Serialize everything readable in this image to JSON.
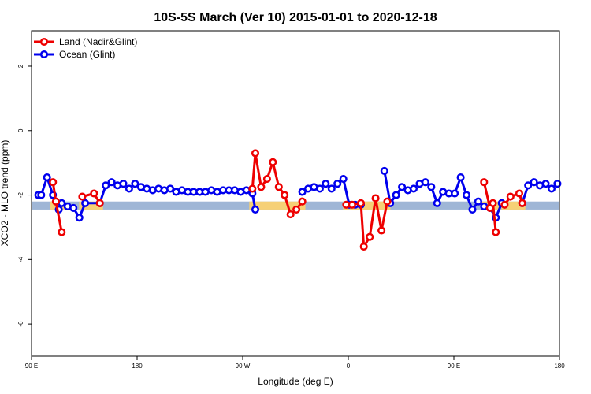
{
  "chart_data": {
    "type": "line",
    "title": "10S-5S March (Ver 10)   2015-01-01 to 2020-12-18",
    "xlabel": "Longitude (deg E)",
    "ylabel": "XCO2 - MLO trend (ppm)",
    "xlim": [
      90,
      450
    ],
    "ylim": [
      -7,
      3.1
    ],
    "x_ticks": [
      {
        "value": 90,
        "label": "90 E"
      },
      {
        "value": 162,
        "label": "180"
      },
      {
        "value": 234,
        "label": "90 W"
      },
      {
        "value": 306,
        "label": "0"
      },
      {
        "value": 378,
        "label": "90 E"
      },
      {
        "value": 450,
        "label": "180"
      }
    ],
    "y_ticks": [
      -6,
      -4,
      -2,
      0,
      2
    ],
    "legend_position": "top-left",
    "colors": {
      "land": "#ee0000",
      "ocean": "#0000ee",
      "band": "#9fb6d6",
      "band_highlight": "#ffd36b"
    },
    "reference_band": {
      "y_min": -2.45,
      "y_max": -2.2
    },
    "series": [
      {
        "name": "Land (Nadir&Glint)",
        "segments": [
          [
            [
              104.6,
              -1.6
            ],
            [
              106.6,
              -2.2
            ],
            [
              110.6,
              -3.15
            ]
          ],
          [
            [
              124.6,
              -2.05
            ],
            [
              132.6,
              -1.95
            ],
            [
              136.6,
              -2.25
            ]
          ],
          [
            [
              240.6,
              -1.8
            ],
            [
              242.6,
              -0.7
            ],
            [
              246.6,
              -1.75
            ],
            [
              250.6,
              -1.5
            ],
            [
              254.6,
              -0.98
            ],
            [
              258.6,
              -1.75
            ],
            [
              262.6,
              -2.0
            ],
            [
              266.6,
              -2.6
            ],
            [
              270.6,
              -2.45
            ],
            [
              274.6,
              -2.2
            ]
          ],
          [
            [
              304.6,
              -2.3
            ],
            [
              308.6,
              -2.3
            ],
            [
              314.6,
              -2.25
            ],
            [
              316.6,
              -3.6
            ],
            [
              320.6,
              -3.3
            ],
            [
              324.6,
              -2.1
            ],
            [
              328.6,
              -3.1
            ],
            [
              332.6,
              -2.2
            ]
          ],
          [
            [
              398.6,
              -1.6
            ],
            [
              402.6,
              -2.4
            ],
            [
              404.6,
              -2.25
            ],
            [
              406.6,
              -3.15
            ]
          ],
          [
            [
              412.6,
              -2.3
            ],
            [
              416.6,
              -2.05
            ],
            [
              422.6,
              -1.95
            ],
            [
              424.6,
              -2.25
            ]
          ]
        ]
      },
      {
        "name": "Ocean (Glint)",
        "segments": [
          [
            [
              94.6,
              -2.0
            ],
            [
              96.6,
              -2.0
            ],
            [
              100.6,
              -1.45
            ],
            [
              104.6,
              -2.0
            ],
            [
              108.6,
              -2.45
            ],
            [
              110.6,
              -2.25
            ],
            [
              114.6,
              -2.35
            ],
            [
              118.6,
              -2.4
            ],
            [
              122.6,
              -2.7
            ],
            [
              126.6,
              -2.25
            ],
            [
              136.6,
              -2.25
            ],
            [
              140.6,
              -1.7
            ],
            [
              144.6,
              -1.6
            ],
            [
              148.6,
              -1.7
            ],
            [
              152.6,
              -1.65
            ],
            [
              156.6,
              -1.8
            ],
            [
              160.6,
              -1.65
            ],
            [
              164.6,
              -1.75
            ],
            [
              168.6,
              -1.8
            ],
            [
              172.6,
              -1.85
            ],
            [
              176.6,
              -1.8
            ],
            [
              180.6,
              -1.85
            ],
            [
              184.6,
              -1.8
            ],
            [
              188.6,
              -1.9
            ],
            [
              192.6,
              -1.85
            ],
            [
              196.6,
              -1.9
            ],
            [
              200.6,
              -1.9
            ],
            [
              204.6,
              -1.9
            ],
            [
              208.6,
              -1.9
            ],
            [
              212.6,
              -1.85
            ],
            [
              216.6,
              -1.9
            ],
            [
              220.6,
              -1.85
            ],
            [
              224.6,
              -1.85
            ],
            [
              228.6,
              -1.85
            ],
            [
              232.6,
              -1.9
            ],
            [
              236.6,
              -1.85
            ],
            [
              240.6,
              -1.95
            ],
            [
              242.6,
              -2.45
            ]
          ],
          [
            [
              274.6,
              -1.9
            ],
            [
              278.6,
              -1.8
            ],
            [
              282.6,
              -1.75
            ],
            [
              286.6,
              -1.8
            ],
            [
              290.6,
              -1.65
            ],
            [
              294.6,
              -1.8
            ],
            [
              298.6,
              -1.65
            ],
            [
              302.6,
              -1.5
            ],
            [
              306.6,
              -2.3
            ],
            [
              310.6,
              -2.3
            ],
            [
              314.6,
              -2.3
            ]
          ],
          [
            [
              330.6,
              -1.25
            ],
            [
              334.6,
              -2.25
            ],
            [
              338.6,
              -2.0
            ],
            [
              342.6,
              -1.75
            ],
            [
              346.6,
              -1.85
            ],
            [
              350.6,
              -1.8
            ],
            [
              354.6,
              -1.65
            ],
            [
              358.6,
              -1.6
            ],
            [
              362.6,
              -1.75
            ],
            [
              366.6,
              -2.25
            ],
            [
              370.6,
              -1.9
            ],
            [
              374.6,
              -1.95
            ],
            [
              378.6,
              -1.95
            ],
            [
              382.6,
              -1.45
            ],
            [
              386.6,
              -2.0
            ],
            [
              390.6,
              -2.45
            ],
            [
              394.6,
              -2.2
            ],
            [
              398.6,
              -2.35
            ],
            [
              402.6,
              -2.4
            ],
            [
              406.6,
              -2.7
            ],
            [
              410.6,
              -2.25
            ]
          ],
          [
            [
              424.6,
              -2.25
            ],
            [
              428.6,
              -1.7
            ],
            [
              432.6,
              -1.6
            ],
            [
              436.6,
              -1.7
            ],
            [
              440.6,
              -1.65
            ],
            [
              444.6,
              -1.8
            ],
            [
              448.6,
              -1.65
            ]
          ]
        ]
      }
    ]
  }
}
